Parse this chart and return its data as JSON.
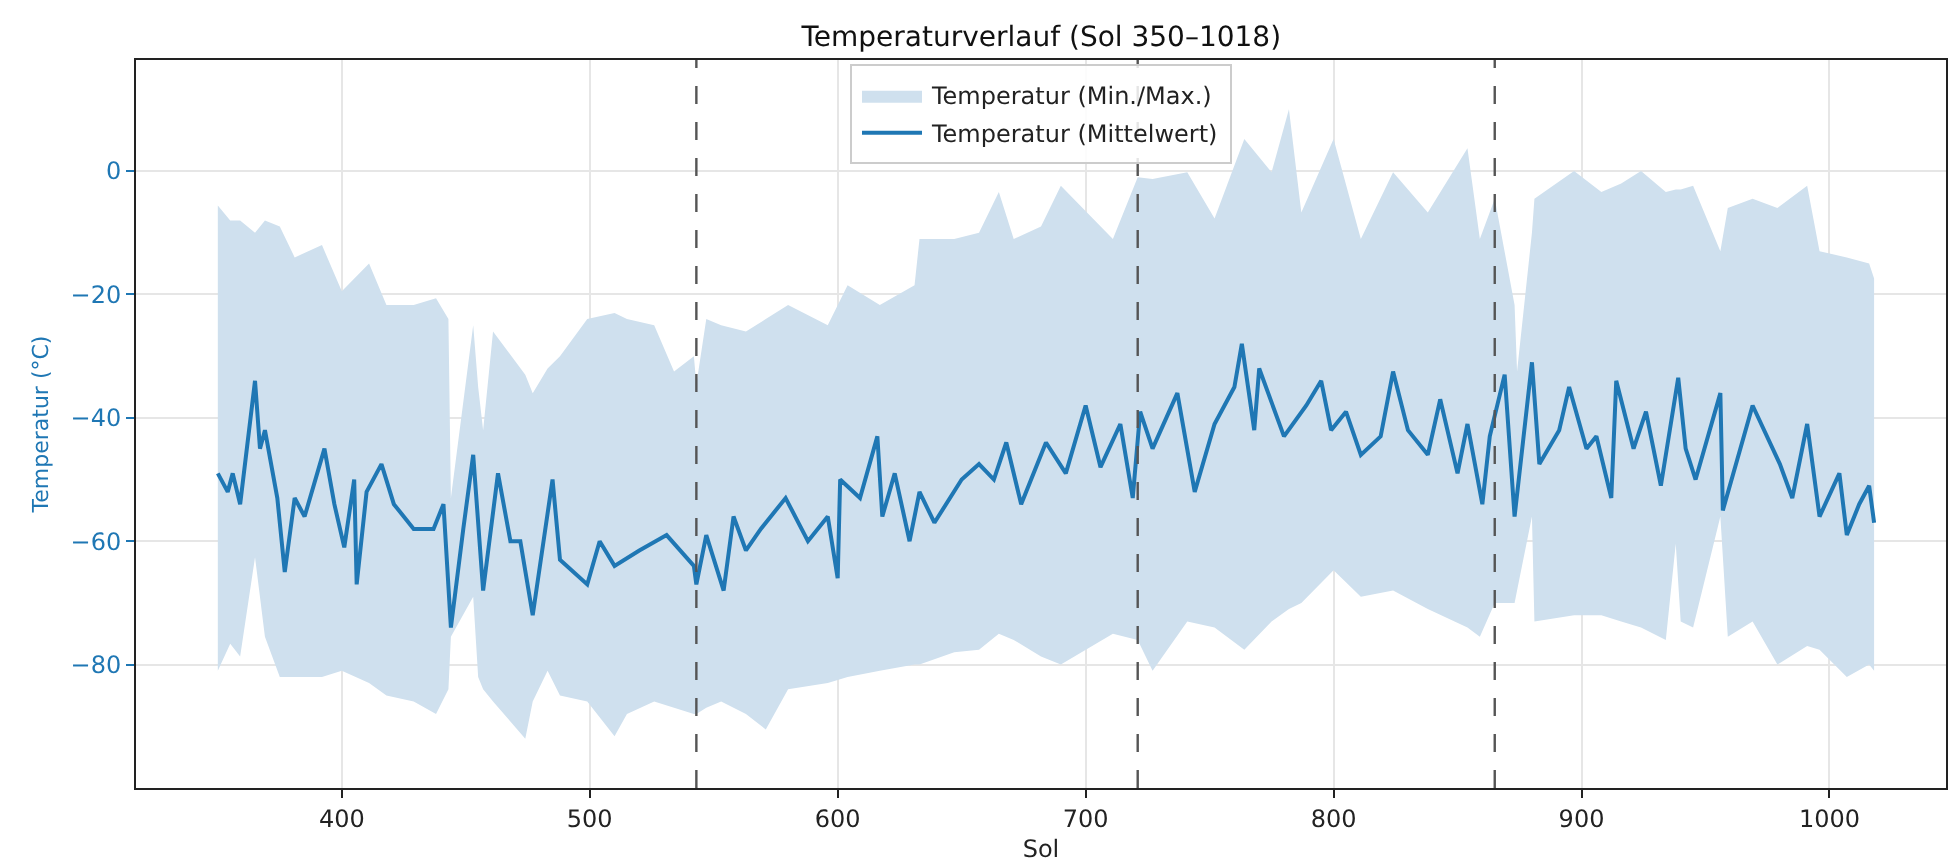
{
  "chart_data": {
    "type": "line",
    "title": "Temperaturverlauf (Sol 350–1018)",
    "xlabel": "Sol",
    "ylabel": "Temperatur (°C)",
    "xlim": [
      317,
      1047
    ],
    "xticks": [
      400,
      500,
      600,
      700,
      800,
      900,
      1000
    ],
    "ylim": [
      -100,
      18
    ],
    "yticks": [
      0,
      -20,
      -40,
      -60,
      -80
    ],
    "grid": true,
    "legend": "top",
    "line_style": "solid",
    "marker": "none",
    "ref_lines": [
      {
        "axis": "x",
        "value": 543,
        "color": "#555555",
        "line_style": "dashed"
      },
      {
        "axis": "x",
        "value": 721,
        "color": "#555555",
        "line_style": "dashed"
      },
      {
        "axis": "x",
        "value": 865,
        "color": "#555555",
        "line_style": "dashed"
      }
    ],
    "series": [
      {
        "name": "Temperatur (Mittelwert)",
        "color": "#1f77b4",
        "x": [
          350,
          354,
          356,
          359,
          365,
          367,
          369,
          374,
          377,
          381,
          385,
          393,
          397,
          401,
          405,
          406,
          410,
          416,
          421,
          429,
          437,
          441,
          444,
          449,
          453,
          457,
          463,
          468,
          472,
          477,
          485,
          488,
          499,
          504,
          510,
          520,
          531,
          542,
          543,
          547,
          554,
          558,
          563,
          569,
          579,
          588,
          596,
          600,
          601,
          609,
          616,
          618,
          623,
          629,
          633,
          639,
          650,
          657,
          663,
          668,
          674,
          684,
          692,
          700,
          706,
          714,
          719,
          722,
          727,
          737,
          744,
          752,
          760,
          763,
          768,
          770,
          780,
          789,
          795,
          799,
          805,
          811,
          819,
          824,
          830,
          838,
          843,
          850,
          854,
          860,
          863,
          869,
          873,
          880,
          883,
          891,
          895,
          902,
          906,
          912,
          914,
          921,
          926,
          932,
          939,
          942,
          946,
          956,
          957,
          969,
          980,
          985,
          991,
          996,
          1004,
          1007,
          1012,
          1016,
          1018
        ],
        "values": [
          -49,
          -52,
          -49,
          -54,
          -34,
          -45,
          -42,
          -53,
          -65,
          -53,
          -56,
          -45,
          -54,
          -61,
          -50,
          -67,
          -52,
          -47.5,
          -54,
          -58,
          -58,
          -54,
          -74,
          -58,
          -46,
          -68,
          -49,
          -60,
          -60,
          -72,
          -50,
          -63,
          -67,
          -60,
          -64,
          -61.5,
          -59,
          -64,
          -67,
          -59,
          -68,
          -56,
          -61.5,
          -58,
          -53,
          -60,
          -56,
          -66,
          -50,
          -53,
          -43,
          -56,
          -49,
          -60,
          -52,
          -57,
          -50,
          -47.5,
          -50,
          -44,
          -54,
          -44,
          -49,
          -38,
          -48,
          -41,
          -53,
          -39,
          -45,
          -36,
          -52,
          -41,
          -35,
          -28,
          -42,
          -32,
          -43,
          -38,
          -34,
          -42,
          -39,
          -46,
          -43,
          -32.5,
          -42,
          -46,
          -37,
          -49,
          -41,
          -54,
          -43,
          -33,
          -56,
          -31,
          -47.5,
          -42,
          -35,
          -45,
          -43,
          -53,
          -34,
          -45,
          -39,
          -51,
          -33.5,
          -45,
          -50,
          -36,
          -55,
          -38,
          -47.5,
          -53,
          -41,
          -56,
          -49,
          -59,
          -54,
          -51,
          -57
        ]
      },
      {
        "name": "Temperatur (Min./Max.)",
        "color": "#cfe0ee",
        "x": [
          350,
          355,
          359,
          365,
          369,
          375,
          381,
          392,
          400,
          411,
          418,
          429,
          438,
          443,
          444,
          453,
          455,
          457,
          461,
          474,
          477,
          483,
          488,
          499,
          510,
          515,
          526,
          534,
          542,
          543,
          547,
          553,
          563,
          571,
          580,
          596,
          604,
          617,
          631,
          633,
          647,
          657,
          665,
          671,
          682,
          690,
          700,
          711,
          716,
          721,
          727,
          741,
          752,
          764,
          775,
          782,
          787,
          800,
          811,
          824,
          838,
          854,
          859,
          865,
          873,
          874,
          880,
          881,
          897,
          908,
          916,
          924,
          934,
          938,
          940,
          945,
          956,
          959,
          969,
          979,
          991,
          996,
          1007,
          1016,
          1018
        ],
        "values": [
          null,
          null,
          null,
          null,
          null,
          null,
          null,
          null,
          null,
          null,
          null,
          null,
          null,
          null,
          null,
          null,
          null,
          null,
          null,
          null,
          null,
          null,
          null,
          null,
          null,
          null,
          null,
          null,
          null,
          null,
          null,
          null,
          null,
          null,
          null,
          null,
          null,
          null,
          null,
          null,
          null,
          null,
          null,
          null,
          null,
          null,
          null,
          null,
          null,
          null,
          null,
          null,
          null,
          null,
          null,
          null,
          null,
          null,
          null,
          null,
          null,
          null,
          null,
          null,
          null,
          null,
          null,
          null,
          null,
          null,
          null,
          null,
          null,
          null,
          null,
          null,
          null,
          null,
          null,
          null,
          null,
          null,
          null,
          null,
          null
        ],
        "upper": [
          -5.6,
          -8,
          -8,
          -10,
          -8,
          -9,
          -14,
          -12,
          -19.5,
          -15,
          -21.7,
          -21.7,
          -20.6,
          -24,
          -53,
          -25,
          -35,
          -42,
          -26,
          -33,
          -36,
          -32,
          -30,
          -24,
          -23,
          -24,
          -25,
          -32.5,
          -30,
          -34.6,
          -24,
          -25,
          -26,
          -24,
          -21.7,
          -25,
          -18.5,
          -21.7,
          -18.5,
          -11,
          -11,
          -10,
          -3.4,
          -11,
          -9,
          -2.4,
          null,
          -11,
          null,
          -1,
          -1.3,
          -0.2,
          -7.7,
          5.2,
          -0.2,
          10,
          -6.7,
          5.2,
          -11,
          -0.2,
          -6.7,
          3.7,
          -11,
          -4.5,
          -21.7,
          -32.5,
          -10,
          -4.5,
          0,
          -3.4,
          -2,
          0,
          -3.4,
          -3,
          -3,
          -2.4,
          -13,
          -6,
          -4.5,
          -6,
          -2.4,
          -13,
          -14,
          -15,
          -17.4
        ],
        "lower": [
          -81,
          -76.6,
          -78.7,
          -62.6,
          -75.5,
          -82,
          -82,
          -82,
          -81,
          -83,
          -85,
          -86,
          -88,
          -84,
          -75.5,
          -69,
          -82,
          -84,
          -86,
          -92,
          -86,
          -81,
          -85,
          -86,
          -91.6,
          -88,
          -86,
          -87,
          -88,
          -88,
          -87,
          -86,
          -88,
          -90.5,
          -84,
          -83,
          -82,
          -81,
          -80,
          -80,
          -78,
          -77.6,
          -75,
          -76,
          -78.7,
          -80,
          null,
          -75,
          null,
          -76,
          -81,
          -73,
          -74,
          -77.6,
          -73,
          -71,
          -70,
          -64.7,
          -69,
          -68,
          -71,
          -74,
          -75.5,
          -70,
          -70,
          -68,
          -56,
          -73,
          -72,
          -72,
          -73,
          -74,
          -76,
          -60.4,
          -73,
          -74,
          -56,
          -75.5,
          -73,
          -80,
          -77,
          -77.6,
          -82,
          -80,
          -81
        ]
      }
    ]
  }
}
